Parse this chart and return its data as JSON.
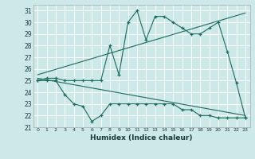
{
  "title": "",
  "xlabel": "Humidex (Indice chaleur)",
  "bg_color": "#cce8e8",
  "line_color": "#1a6b5a",
  "x_min": 0,
  "x_max": 23,
  "y_min": 21,
  "y_max": 31,
  "series_max": {
    "x": [
      0,
      1,
      2,
      3,
      4,
      5,
      6,
      7,
      8,
      9,
      10,
      11,
      12,
      13,
      14,
      15,
      16,
      17,
      18,
      19,
      20,
      21,
      22,
      23
    ],
    "y": [
      25,
      25.2,
      25.2,
      25,
      25,
      25,
      25,
      25,
      28,
      25.5,
      30,
      31,
      28.5,
      30.5,
      30.5,
      30,
      29.5,
      29,
      29,
      29.5,
      30,
      27.5,
      24.8,
      21.8
    ]
  },
  "series_min": {
    "x": [
      0,
      1,
      2,
      3,
      4,
      5,
      6,
      7,
      8,
      9,
      10,
      11,
      12,
      13,
      14,
      15,
      16,
      17,
      18,
      19,
      20,
      21,
      22,
      23
    ],
    "y": [
      25,
      25,
      25,
      23.8,
      23,
      22.8,
      21.5,
      22,
      23,
      23,
      23,
      23,
      23,
      23,
      23,
      23,
      22.5,
      22.5,
      22,
      22,
      21.8,
      21.8,
      21.8,
      21.8
    ]
  },
  "reg_max": {
    "x": [
      0,
      23
    ],
    "y": [
      25.5,
      30.8
    ]
  },
  "reg_min": {
    "x": [
      0,
      23
    ],
    "y": [
      25.2,
      22.0
    ]
  }
}
